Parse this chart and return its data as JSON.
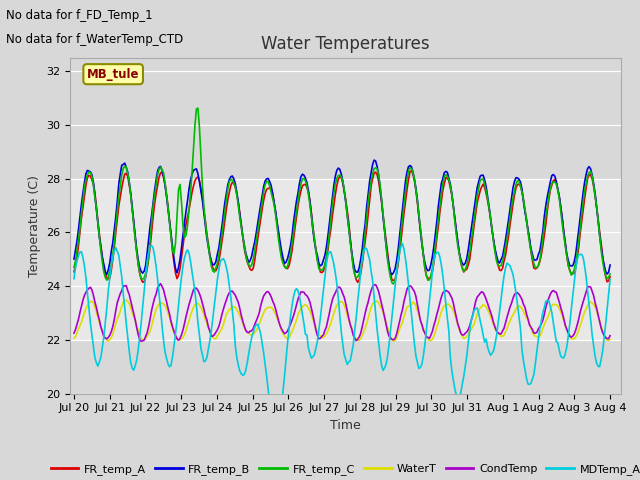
{
  "title": "Water Temperatures",
  "xlabel": "Time",
  "ylabel": "Temperature (C)",
  "background_color": "#d8d8d8",
  "plot_bg_color": "#d8d8d8",
  "shaded_band_color": "#e8e8e8",
  "shaded_band": [
    22,
    28
  ],
  "ylim": [
    20,
    32.5
  ],
  "yticks": [
    20,
    22,
    24,
    26,
    28,
    30,
    32
  ],
  "x_tick_labels": [
    "Jul 20",
    "Jul 21",
    "Jul 22",
    "Jul 23",
    "Jul 24",
    "Jul 25",
    "Jul 26",
    "Jul 27",
    "Jul 28",
    "Jul 29",
    "Jul 30",
    "Jul 31",
    "Aug 1",
    "Aug 2",
    "Aug 3",
    "Aug 4"
  ],
  "legend_entries": [
    {
      "label": "FR_temp_A",
      "color": "#dd0000"
    },
    {
      "label": "FR_temp_B",
      "color": "#0000dd"
    },
    {
      "label": "FR_temp_C",
      "color": "#00bb00"
    },
    {
      "label": "WaterT",
      "color": "#dddd00"
    },
    {
      "label": "CondTemp",
      "color": "#aa00cc"
    },
    {
      "label": "MDTemp_A",
      "color": "#00ccdd"
    }
  ],
  "series_colors": {
    "FR_temp_A": "#dd0000",
    "FR_temp_B": "#0000dd",
    "FR_temp_C": "#00bb00",
    "WaterT": "#dddd00",
    "CondTemp": "#aa00cc",
    "MDTemp_A": "#00ccdd"
  },
  "ann1": "No data for f_FD_Temp_1",
  "ann2": "No data for f_WaterTemp_CTD",
  "mb_text": "MB_tule",
  "grid_color": "#bbbbbb",
  "line_width": 1.2,
  "title_fontsize": 12,
  "label_fontsize": 9,
  "tick_fontsize": 8,
  "legend_fontsize": 8
}
